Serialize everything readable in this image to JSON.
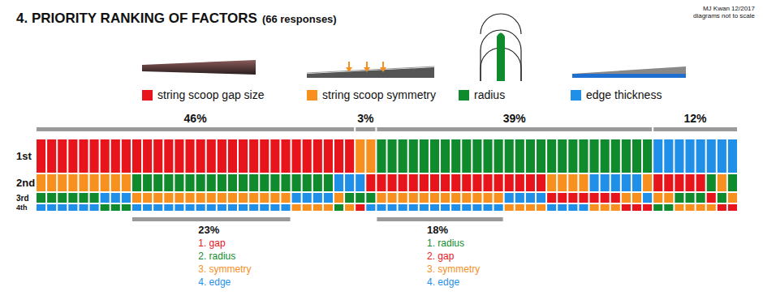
{
  "chart_data": {
    "type": "ranking_columns",
    "title": "4. PRIORITY RANKING OF FACTORS",
    "subtitle": "(66 responses)",
    "credit": [
      "MJ Kwan 12/2017",
      "diagrams not to scale"
    ],
    "rank_labels": [
      "1st",
      "2nd",
      "3rd",
      "4th"
    ],
    "factors": [
      {
        "name": "string scoop gap size",
        "color": "#e8141c"
      },
      {
        "name": "string scoop symmetry",
        "color": "#f7901e"
      },
      {
        "name": "radius",
        "color": "#0f8a2c"
      },
      {
        "name": "edge thickness",
        "color": "#1f8fe8"
      }
    ],
    "responses": [
      [
        0,
        1,
        2,
        3
      ],
      [
        0,
        1,
        2,
        3
      ],
      [
        0,
        1,
        2,
        3
      ],
      [
        0,
        1,
        2,
        3
      ],
      [
        0,
        1,
        2,
        3
      ],
      [
        0,
        1,
        2,
        3
      ],
      [
        0,
        1,
        3,
        2
      ],
      [
        0,
        1,
        3,
        2
      ],
      [
        0,
        1,
        3,
        2
      ],
      [
        0,
        2,
        1,
        3
      ],
      [
        0,
        2,
        1,
        3
      ],
      [
        0,
        2,
        1,
        3
      ],
      [
        0,
        2,
        1,
        3
      ],
      [
        0,
        2,
        1,
        3
      ],
      [
        0,
        2,
        1,
        3
      ],
      [
        0,
        2,
        1,
        3
      ],
      [
        0,
        2,
        1,
        3
      ],
      [
        0,
        2,
        1,
        3
      ],
      [
        0,
        2,
        1,
        3
      ],
      [
        0,
        2,
        1,
        3
      ],
      [
        0,
        2,
        1,
        3
      ],
      [
        0,
        2,
        1,
        3
      ],
      [
        0,
        2,
        1,
        3
      ],
      [
        0,
        2,
        1,
        3
      ],
      [
        0,
        2,
        3,
        1
      ],
      [
        0,
        2,
        3,
        1
      ],
      [
        0,
        2,
        3,
        1
      ],
      [
        0,
        2,
        3,
        1
      ],
      [
        0,
        3,
        1,
        2
      ],
      [
        0,
        3,
        2,
        1
      ],
      [
        1,
        3,
        2,
        0
      ],
      [
        1,
        0,
        2,
        3
      ],
      [
        2,
        0,
        1,
        3
      ],
      [
        2,
        0,
        1,
        3
      ],
      [
        2,
        0,
        1,
        3
      ],
      [
        2,
        0,
        1,
        3
      ],
      [
        2,
        0,
        1,
        3
      ],
      [
        2,
        0,
        1,
        3
      ],
      [
        2,
        0,
        1,
        3
      ],
      [
        2,
        0,
        1,
        3
      ],
      [
        2,
        0,
        1,
        3
      ],
      [
        2,
        0,
        1,
        3
      ],
      [
        2,
        0,
        1,
        3
      ],
      [
        2,
        0,
        1,
        3
      ],
      [
        2,
        0,
        3,
        1
      ],
      [
        2,
        0,
        3,
        1
      ],
      [
        2,
        0,
        3,
        1
      ],
      [
        2,
        0,
        3,
        1
      ],
      [
        2,
        1,
        0,
        3
      ],
      [
        2,
        1,
        0,
        3
      ],
      [
        2,
        1,
        0,
        3
      ],
      [
        2,
        1,
        0,
        3
      ],
      [
        2,
        3,
        0,
        1
      ],
      [
        2,
        3,
        0,
        1
      ],
      [
        2,
        3,
        0,
        1
      ],
      [
        2,
        3,
        1,
        0
      ],
      [
        2,
        3,
        1,
        0
      ],
      [
        2,
        1,
        3,
        0
      ],
      [
        3,
        0,
        1,
        2
      ],
      [
        3,
        0,
        1,
        2
      ],
      [
        3,
        0,
        2,
        1
      ],
      [
        3,
        0,
        2,
        1
      ],
      [
        3,
        0,
        2,
        1
      ],
      [
        3,
        2,
        0,
        1
      ],
      [
        3,
        1,
        2,
        0
      ],
      [
        3,
        2,
        1,
        0
      ]
    ],
    "first_place_shares": [
      {
        "factor": 0,
        "value": 46,
        "label": "46%"
      },
      {
        "factor": 1,
        "value": 3,
        "label": "3%"
      },
      {
        "factor": 2,
        "value": 39,
        "label": "39%"
      },
      {
        "factor": 3,
        "value": 12,
        "label": "12%"
      }
    ],
    "order_shares": [
      {
        "order": [
          0,
          2,
          1,
          3
        ],
        "value": 23,
        "label": "23%",
        "items": [
          "1. gap",
          "2. radius",
          "3. symmetry",
          "4. edge"
        ]
      },
      {
        "order": [
          2,
          0,
          1,
          3
        ],
        "value": 18,
        "label": "18%",
        "items": [
          "1. radius",
          "2. gap",
          "3. symmetry",
          "4. edge"
        ]
      }
    ]
  }
}
